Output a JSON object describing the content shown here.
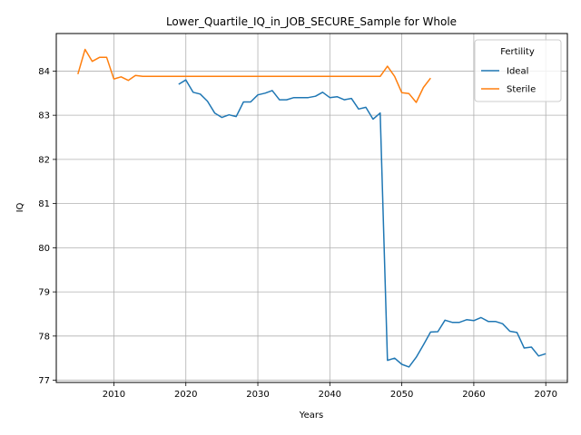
{
  "chart_data": {
    "type": "line",
    "title": "Lower_Quartile_IQ_in_JOB_SECURE_Sample for Whole",
    "xlabel": "Years",
    "ylabel": "IQ",
    "xlim": [
      2002,
      2073
    ],
    "ylim": [
      76.95,
      84.85
    ],
    "xticks": [
      2010,
      2020,
      2030,
      2040,
      2050,
      2060,
      2070
    ],
    "yticks": [
      77,
      78,
      79,
      80,
      81,
      82,
      83,
      84
    ],
    "grid": true,
    "legend": {
      "title": "Fertility",
      "placement": "top-right"
    },
    "series": [
      {
        "name": "Ideal",
        "color": "#1f77b4",
        "x": [
          2019,
          2020,
          2021,
          2022,
          2023,
          2024,
          2025,
          2026,
          2027,
          2028,
          2029,
          2030,
          2031,
          2032,
          2033,
          2034,
          2035,
          2036,
          2037,
          2038,
          2039,
          2040,
          2041,
          2042,
          2043,
          2044,
          2045,
          2046,
          2047,
          2048,
          2049,
          2050,
          2051,
          2052,
          2053,
          2054,
          2055,
          2056,
          2057,
          2058,
          2059,
          2060,
          2061,
          2062,
          2063,
          2064,
          2065,
          2066,
          2067,
          2068,
          2069,
          2070
        ],
        "values": [
          83.7,
          83.8,
          83.52,
          83.48,
          83.32,
          83.05,
          82.95,
          83.01,
          82.97,
          83.3,
          83.3,
          83.46,
          83.5,
          83.56,
          83.35,
          83.35,
          83.4,
          83.4,
          83.4,
          83.43,
          83.52,
          83.4,
          83.42,
          83.35,
          83.38,
          83.14,
          83.18,
          82.91,
          83.05,
          77.45,
          77.5,
          77.36,
          77.3,
          77.52,
          77.8,
          78.09,
          78.1,
          78.36,
          78.31,
          78.31,
          78.37,
          78.35,
          78.42,
          78.33,
          78.33,
          78.28,
          78.11,
          78.08,
          77.73,
          77.75,
          77.55,
          77.6
        ]
      },
      {
        "name": "Sterile",
        "color": "#ff7f0e",
        "x": [
          2005,
          2006,
          2007,
          2008,
          2009,
          2010,
          2011,
          2012,
          2013,
          2014,
          2015,
          2016,
          2017,
          2018,
          2019,
          2020,
          2021,
          2022,
          2023,
          2024,
          2025,
          2026,
          2027,
          2028,
          2029,
          2030,
          2031,
          2032,
          2033,
          2034,
          2035,
          2036,
          2037,
          2038,
          2039,
          2040,
          2041,
          2042,
          2043,
          2044,
          2045,
          2046,
          2047,
          2048,
          2049,
          2050,
          2051,
          2052,
          2053,
          2054
        ],
        "values": [
          83.93,
          84.49,
          84.22,
          84.31,
          84.31,
          83.82,
          83.87,
          83.79,
          83.9,
          83.88,
          83.88,
          83.88,
          83.88,
          83.88,
          83.88,
          83.88,
          83.88,
          83.88,
          83.88,
          83.88,
          83.88,
          83.88,
          83.88,
          83.88,
          83.88,
          83.88,
          83.88,
          83.88,
          83.88,
          83.88,
          83.88,
          83.88,
          83.88,
          83.88,
          83.88,
          83.88,
          83.88,
          83.88,
          83.88,
          83.88,
          83.88,
          83.88,
          83.88,
          84.11,
          83.88,
          83.51,
          83.49,
          83.29,
          83.63,
          83.84
        ]
      }
    ]
  }
}
